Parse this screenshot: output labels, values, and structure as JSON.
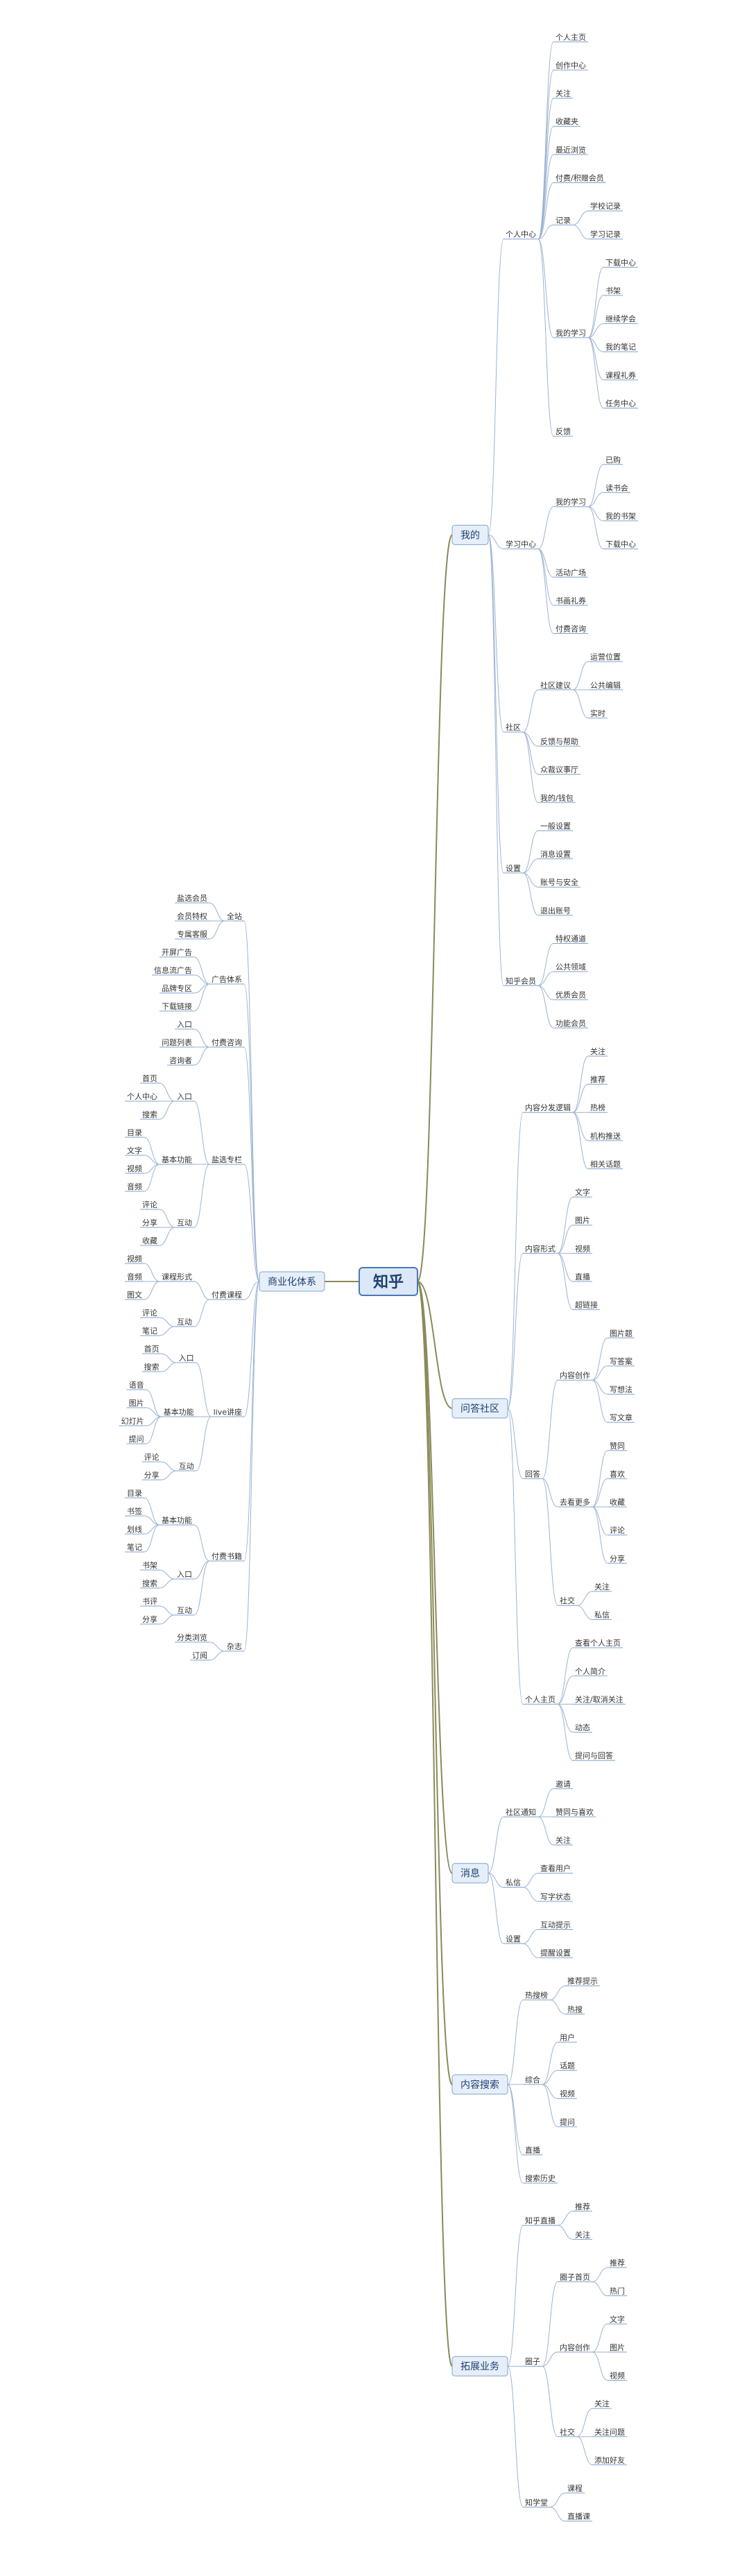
{
  "root": {
    "label": "知乎",
    "right": [
      {
        "label": "我的",
        "children": [
          {
            "label": "个人中心",
            "children": [
              {
                "label": "个人主页"
              },
              {
                "label": "创作中心"
              },
              {
                "label": "关注"
              },
              {
                "label": "收藏夹"
              },
              {
                "label": "最近浏览"
              },
              {
                "label": "付费/积赠会员"
              },
              {
                "label": "记录",
                "children": [
                  {
                    "label": "学校记录"
                  },
                  {
                    "label": "学习记录"
                  }
                ]
              },
              {
                "label": "我的学习",
                "children": [
                  {
                    "label": "下载中心"
                  },
                  {
                    "label": "书架"
                  },
                  {
                    "label": "继续学会"
                  },
                  {
                    "label": "我的笔记"
                  },
                  {
                    "label": "课程礼券"
                  },
                  {
                    "label": "任务中心"
                  }
                ]
              },
              {
                "label": "反馈"
              }
            ]
          },
          {
            "label": "学习中心",
            "children": [
              {
                "label": "我的学习",
                "children": [
                  {
                    "label": "已购"
                  },
                  {
                    "label": "读书会"
                  },
                  {
                    "label": "我的书架"
                  },
                  {
                    "label": "下载中心"
                  }
                ]
              },
              {
                "label": "活动广场"
              },
              {
                "label": "书画礼券"
              },
              {
                "label": "付费咨询"
              }
            ]
          },
          {
            "label": "社区",
            "children": [
              {
                "label": "社区建议",
                "children": [
                  {
                    "label": "运营位置"
                  },
                  {
                    "label": "公共编辑"
                  },
                  {
                    "label": "实时"
                  }
                ]
              },
              {
                "label": "反馈与帮助"
              },
              {
                "label": "众裁议事厅"
              },
              {
                "label": "我的/钱包"
              }
            ]
          },
          {
            "label": "设置",
            "children": [
              {
                "label": "一般设置"
              },
              {
                "label": "消息设置"
              },
              {
                "label": "账号与安全"
              },
              {
                "label": "退出账号"
              }
            ]
          },
          {
            "label": "知乎会员",
            "children": [
              {
                "label": "特权通道"
              },
              {
                "label": "公共领域"
              },
              {
                "label": "优质会员"
              },
              {
                "label": "功能会员"
              }
            ]
          }
        ]
      },
      {
        "label": "问答社区",
        "children": [
          {
            "label": "内容分发逻辑",
            "children": [
              {
                "label": "关注"
              },
              {
                "label": "推荐"
              },
              {
                "label": "热榜"
              },
              {
                "label": "机构推送"
              },
              {
                "label": "相关话题"
              }
            ]
          },
          {
            "label": "内容形式",
            "children": [
              {
                "label": "文字"
              },
              {
                "label": "图片"
              },
              {
                "label": "视频"
              },
              {
                "label": "直播"
              },
              {
                "label": "超链接"
              }
            ]
          },
          {
            "label": "回答",
            "children": [
              {
                "label": "内容创作",
                "children": [
                  {
                    "label": "图片题"
                  },
                  {
                    "label": "写答案"
                  },
                  {
                    "label": "写想法"
                  },
                  {
                    "label": "写文章"
                  }
                ]
              },
              {
                "label": "去看更多",
                "children": [
                  {
                    "label": "赞同"
                  },
                  {
                    "label": "喜欢"
                  },
                  {
                    "label": "收藏"
                  },
                  {
                    "label": "评论"
                  },
                  {
                    "label": "分享"
                  }
                ]
              },
              {
                "label": "社交",
                "children": [
                  {
                    "label": "关注"
                  },
                  {
                    "label": "私信"
                  }
                ]
              }
            ]
          },
          {
            "label": "个人主页",
            "children": [
              {
                "label": "查看个人主页"
              },
              {
                "label": "个人简介"
              },
              {
                "label": "关注/取消关注"
              },
              {
                "label": "动态"
              },
              {
                "label": "提问与回答"
              }
            ]
          }
        ]
      },
      {
        "label": "消息",
        "children": [
          {
            "label": "社区通知",
            "children": [
              {
                "label": "邀请"
              },
              {
                "label": "赞同与喜欢"
              },
              {
                "label": "关注"
              }
            ]
          },
          {
            "label": "私信",
            "children": [
              {
                "label": "查看用户"
              },
              {
                "label": "写字状态"
              }
            ]
          },
          {
            "label": "设置",
            "children": [
              {
                "label": "互动提示"
              },
              {
                "label": "提醒设置"
              }
            ]
          }
        ]
      },
      {
        "label": "内容搜索",
        "children": [
          {
            "label": "热搜榜",
            "children": [
              {
                "label": "推荐提示"
              },
              {
                "label": "热搜"
              }
            ]
          },
          {
            "label": "综合",
            "children": [
              {
                "label": "用户"
              },
              {
                "label": "话题"
              },
              {
                "label": "视频"
              },
              {
                "label": "提问"
              }
            ]
          },
          {
            "label": "直播"
          },
          {
            "label": "搜索历史"
          }
        ]
      },
      {
        "label": "拓展业务",
        "children": [
          {
            "label": "知乎直播",
            "children": [
              {
                "label": "推荐"
              },
              {
                "label": "关注"
              }
            ]
          },
          {
            "label": "圈子",
            "children": [
              {
                "label": "圈子首页",
                "children": [
                  {
                    "label": "推荐"
                  },
                  {
                    "label": "热门"
                  }
                ]
              },
              {
                "label": "内容创作",
                "children": [
                  {
                    "label": "文字"
                  },
                  {
                    "label": "图片"
                  },
                  {
                    "label": "视频"
                  }
                ]
              },
              {
                "label": "社交",
                "children": [
                  {
                    "label": "关注"
                  },
                  {
                    "label": "关注问题"
                  },
                  {
                    "label": "添加好友"
                  }
                ]
              }
            ]
          },
          {
            "label": "知学堂",
            "children": [
              {
                "label": "课程"
              },
              {
                "label": "直播课"
              }
            ]
          }
        ]
      }
    ],
    "left": [
      {
        "label": "商业化体系",
        "children": [
          {
            "label": "全站",
            "children": [
              {
                "label": "盐选会员"
              },
              {
                "label": "会员特权"
              },
              {
                "label": "专属客服"
              }
            ]
          },
          {
            "label": "广告体系",
            "children": [
              {
                "label": "开屏广告"
              },
              {
                "label": "信息流广告"
              },
              {
                "label": "品牌专区"
              },
              {
                "label": "下载链接"
              }
            ]
          },
          {
            "label": "付费咨询",
            "children": [
              {
                "label": "入口"
              },
              {
                "label": "问题列表"
              },
              {
                "label": "咨询者"
              }
            ]
          },
          {
            "label": "盐选专栏",
            "children": [
              {
                "label": "入口",
                "children": [
                  {
                    "label": "首页"
                  },
                  {
                    "label": "个人中心"
                  },
                  {
                    "label": "搜索"
                  }
                ]
              },
              {
                "label": "基本功能",
                "children": [
                  {
                    "label": "目录"
                  },
                  {
                    "label": "文字"
                  },
                  {
                    "label": "视频"
                  },
                  {
                    "label": "音频"
                  }
                ]
              },
              {
                "label": "互动",
                "children": [
                  {
                    "label": "评论"
                  },
                  {
                    "label": "分享"
                  },
                  {
                    "label": "收藏"
                  }
                ]
              }
            ]
          },
          {
            "label": "付费课程",
            "children": [
              {
                "label": "课程形式",
                "children": [
                  {
                    "label": "视频"
                  },
                  {
                    "label": "音频"
                  },
                  {
                    "label": "图文"
                  }
                ]
              },
              {
                "label": "互动",
                "children": [
                  {
                    "label": "评论"
                  },
                  {
                    "label": "笔记"
                  }
                ]
              }
            ]
          },
          {
            "label": "live讲座",
            "children": [
              {
                "label": "入口",
                "children": [
                  {
                    "label": "首页"
                  },
                  {
                    "label": "搜索"
                  }
                ]
              },
              {
                "label": "基本功能",
                "children": [
                  {
                    "label": "语音"
                  },
                  {
                    "label": "图片"
                  },
                  {
                    "label": "幻灯片"
                  },
                  {
                    "label": "提问"
                  }
                ]
              },
              {
                "label": "互动",
                "children": [
                  {
                    "label": "评论"
                  },
                  {
                    "label": "分享"
                  }
                ]
              }
            ]
          },
          {
            "label": "付费书籍",
            "children": [
              {
                "label": "基本功能",
                "children": [
                  {
                    "label": "目录"
                  },
                  {
                    "label": "书签"
                  },
                  {
                    "label": "划线"
                  },
                  {
                    "label": "笔记"
                  }
                ]
              },
              {
                "label": "入口",
                "children": [
                  {
                    "label": "书架"
                  },
                  {
                    "label": "搜索"
                  }
                ]
              },
              {
                "label": "互动",
                "children": [
                  {
                    "label": "书评"
                  },
                  {
                    "label": "分享"
                  }
                ]
              }
            ]
          },
          {
            "label": "杂志",
            "children": [
              {
                "label": "分类浏览"
              },
              {
                "label": "订阅"
              }
            ]
          }
        ]
      }
    ]
  }
}
